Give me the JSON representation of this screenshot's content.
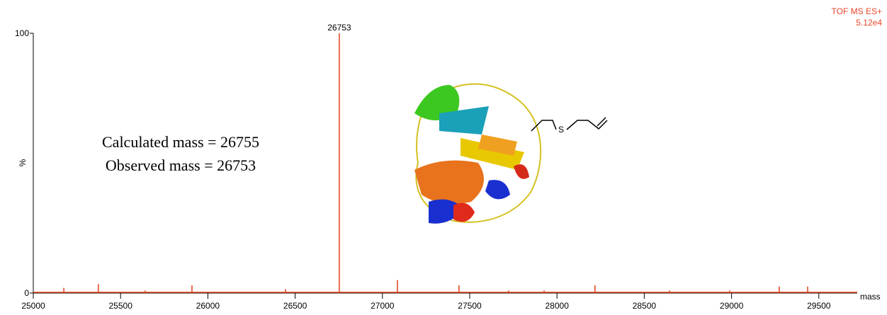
{
  "chart_data": {
    "type": "bar",
    "title": "TOF MS ES+",
    "subtitle": "5.12e4",
    "xlabel": "mass",
    "ylabel": "%",
    "annotations": [
      "Calculated mass = 26755",
      "Observed mass = 26753"
    ],
    "structure_label": "S",
    "peak_labels": [
      {
        "x": 26753,
        "label": "26753"
      }
    ],
    "x": [
      25175,
      25373,
      25641,
      25909,
      26445,
      26753,
      27086,
      27439,
      27723,
      27926,
      28218,
      28644,
      28989,
      29273,
      29436
    ],
    "values": [
      2,
      3.5,
      1,
      3,
      1.5,
      100,
      5,
      3,
      1,
      1,
      3,
      1,
      1,
      2.5,
      2.5
    ],
    "color": "#e5401c",
    "xlim": [
      25000,
      29720
    ],
    "ylim": [
      0,
      100
    ],
    "xticks": [
      25000,
      25500,
      26000,
      26500,
      27000,
      27500,
      28000,
      28500,
      29000,
      29500
    ],
    "yticks": [
      0,
      100
    ]
  }
}
